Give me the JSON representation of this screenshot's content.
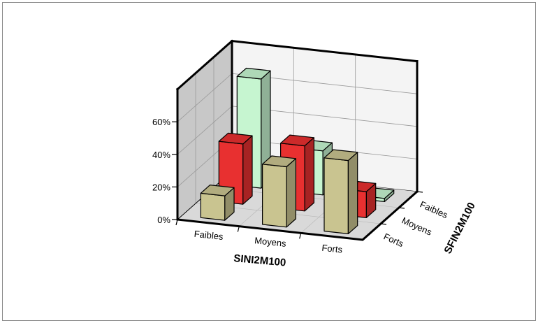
{
  "chart_data": {
    "type": "bar",
    "subtype": "3d-grouped",
    "title": "",
    "x_axis": {
      "label": "SINI2M100",
      "categories": [
        "Faibles",
        "Moyens",
        "Forts"
      ]
    },
    "depth_axis": {
      "label": "SFIN2M100",
      "categories": [
        "Faibles",
        "Moyens",
        "Forts"
      ]
    },
    "y_axis": {
      "ticks": [
        "0%",
        "20%",
        "40%",
        "60%"
      ],
      "ylim": [
        0,
        80
      ],
      "unit": "%"
    },
    "grid": true,
    "colors": {
      "Faibles": "#c6f5d0",
      "Moyens": "#e83030",
      "Forts": "#c9c490"
    },
    "series": [
      {
        "depth": "Faibles",
        "values": [
          67,
          27,
          2
        ]
      },
      {
        "depth": "Moyens",
        "values": [
          37,
          40,
          16
        ]
      },
      {
        "depth": "Forts",
        "values": [
          15,
          37,
          45
        ]
      }
    ]
  }
}
